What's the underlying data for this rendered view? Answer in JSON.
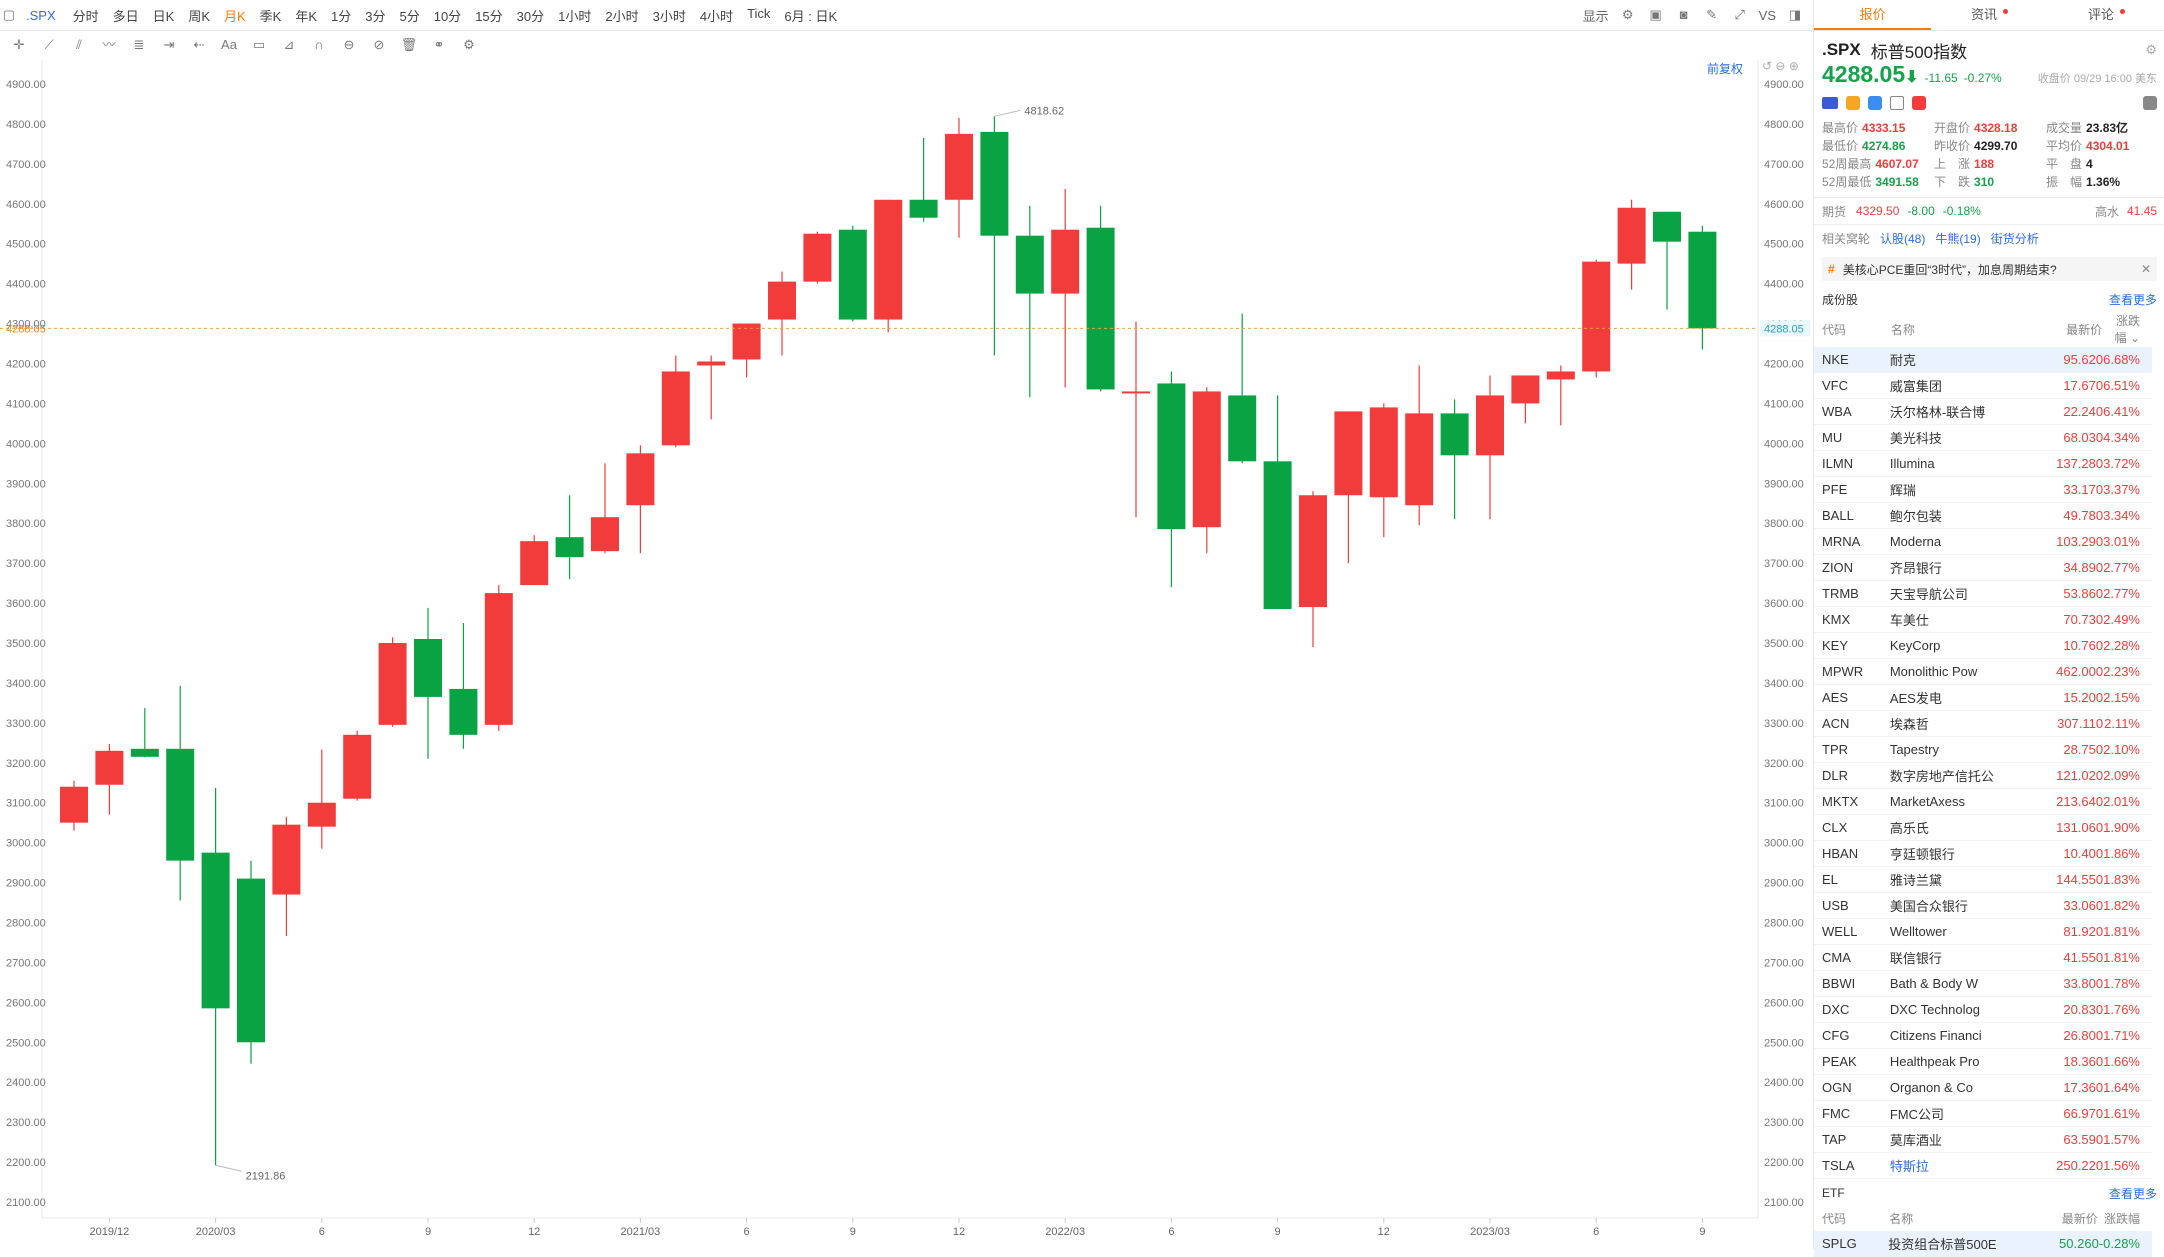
{
  "toolbar": {
    "symbol": ".SPX",
    "periods": [
      "分时",
      "多日",
      "日K",
      "周K",
      "月K",
      "季K",
      "年K",
      "1分",
      "3分",
      "5分",
      "10分",
      "15分",
      "30分",
      "1小时",
      "2小时",
      "3小时",
      "4小时",
      "Tick",
      "6月 : 日K"
    ],
    "active_period": "月K",
    "display_label": "显示",
    "vs_label": "VS"
  },
  "chart": {
    "adjust_label": "前复权",
    "current_price_tag": "4288.05",
    "high_label": "4818.62",
    "low_label": "2191.86",
    "y_ticks": [
      "4900.00",
      "4800.00",
      "4700.00",
      "4600.00",
      "4500.00",
      "4400.00",
      "4300.00",
      "4200.00",
      "4100.00",
      "4000.00",
      "3900.00",
      "3800.00",
      "3700.00",
      "3600.00",
      "3500.00",
      "3400.00",
      "3300.00",
      "3200.00",
      "3100.00",
      "3000.00",
      "2900.00",
      "2800.00",
      "2700.00",
      "2600.00",
      "2500.00",
      "2400.00",
      "2300.00",
      "2200.00",
      "2100.00"
    ],
    "x_ticks": [
      {
        "label": "2019/12",
        "i": 1
      },
      {
        "label": "2020/03",
        "i": 4
      },
      {
        "label": "6",
        "i": 7
      },
      {
        "label": "9",
        "i": 10
      },
      {
        "label": "12",
        "i": 13
      },
      {
        "label": "2021/03",
        "i": 16
      },
      {
        "label": "6",
        "i": 19
      },
      {
        "label": "9",
        "i": 22
      },
      {
        "label": "12",
        "i": 25
      },
      {
        "label": "2022/03",
        "i": 28
      },
      {
        "label": "6",
        "i": 31
      },
      {
        "label": "9",
        "i": 34
      },
      {
        "label": "12",
        "i": 37
      },
      {
        "label": "2023/03",
        "i": 40
      },
      {
        "label": "6",
        "i": 43
      },
      {
        "label": "9",
        "i": 46
      }
    ]
  },
  "chart_data": {
    "type": "candlestick",
    "ylim": [
      2060,
      4960
    ],
    "current_price": 4288.05,
    "candles": [
      {
        "o": 3050,
        "h": 3155,
        "l": 3030,
        "c": 3140
      },
      {
        "o": 3145,
        "h": 3247,
        "l": 3070,
        "c": 3230
      },
      {
        "o": 3235,
        "h": 3337,
        "l": 3214,
        "c": 3215
      },
      {
        "o": 3235,
        "h": 3393,
        "l": 2855,
        "c": 2955
      },
      {
        "o": 2975,
        "h": 3137,
        "l": 2192,
        "c": 2585
      },
      {
        "o": 2910,
        "h": 2955,
        "l": 2447,
        "c": 2500
      },
      {
        "o": 2870,
        "h": 3065,
        "l": 2766,
        "c": 3045
      },
      {
        "o": 3040,
        "h": 3233,
        "l": 2985,
        "c": 3100
      },
      {
        "o": 3110,
        "h": 3280,
        "l": 3105,
        "c": 3270
      },
      {
        "o": 3295,
        "h": 3514,
        "l": 3290,
        "c": 3500
      },
      {
        "o": 3510,
        "h": 3588,
        "l": 3210,
        "c": 3365
      },
      {
        "o": 3385,
        "h": 3550,
        "l": 3235,
        "c": 3270
      },
      {
        "o": 3295,
        "h": 3645,
        "l": 3280,
        "c": 3625
      },
      {
        "o": 3645,
        "h": 3770,
        "l": 3645,
        "c": 3755
      },
      {
        "o": 3765,
        "h": 3870,
        "l": 3660,
        "c": 3715
      },
      {
        "o": 3730,
        "h": 3950,
        "l": 3725,
        "c": 3815
      },
      {
        "o": 3845,
        "h": 3995,
        "l": 3725,
        "c": 3975
      },
      {
        "o": 3995,
        "h": 4220,
        "l": 3990,
        "c": 4180
      },
      {
        "o": 4195,
        "h": 4220,
        "l": 4060,
        "c": 4205
      },
      {
        "o": 4210,
        "h": 4300,
        "l": 4165,
        "c": 4300
      },
      {
        "o": 4310,
        "h": 4430,
        "l": 4220,
        "c": 4405
      },
      {
        "o": 4405,
        "h": 4530,
        "l": 4400,
        "c": 4525
      },
      {
        "o": 4535,
        "h": 4545,
        "l": 4305,
        "c": 4310
      },
      {
        "o": 4310,
        "h": 4610,
        "l": 4278,
        "c": 4610
      },
      {
        "o": 4610,
        "h": 4765,
        "l": 4555,
        "c": 4565
      },
      {
        "o": 4610,
        "h": 4815,
        "l": 4515,
        "c": 4775
      },
      {
        "o": 4780,
        "h": 4819,
        "l": 4220,
        "c": 4520
      },
      {
        "o": 4520,
        "h": 4595,
        "l": 4115,
        "c": 4375
      },
      {
        "o": 4375,
        "h": 4637,
        "l": 4140,
        "c": 4535
      },
      {
        "o": 4540,
        "h": 4595,
        "l": 4130,
        "c": 4135
      },
      {
        "o": 4130,
        "h": 4305,
        "l": 3815,
        "c": 4130
      },
      {
        "o": 4150,
        "h": 4180,
        "l": 3640,
        "c": 3785
      },
      {
        "o": 3790,
        "h": 4140,
        "l": 3725,
        "c": 4130
      },
      {
        "o": 4120,
        "h": 4325,
        "l": 3950,
        "c": 3955
      },
      {
        "o": 3955,
        "h": 4120,
        "l": 3590,
        "c": 3585
      },
      {
        "o": 3590,
        "h": 3880,
        "l": 3490,
        "c": 3870
      },
      {
        "o": 3870,
        "h": 4070,
        "l": 3700,
        "c": 4080
      },
      {
        "o": 3865,
        "h": 4100,
        "l": 3765,
        "c": 4090
      },
      {
        "o": 3845,
        "h": 4195,
        "l": 3795,
        "c": 4075
      },
      {
        "o": 4075,
        "h": 4110,
        "l": 3810,
        "c": 3970
      },
      {
        "o": 3970,
        "h": 4170,
        "l": 3810,
        "c": 4120
      },
      {
        "o": 4100,
        "h": 4170,
        "l": 4050,
        "c": 4170
      },
      {
        "o": 4160,
        "h": 4195,
        "l": 4045,
        "c": 4180
      },
      {
        "o": 4180,
        "h": 4460,
        "l": 4165,
        "c": 4455
      },
      {
        "o": 4450,
        "h": 4610,
        "l": 4385,
        "c": 4590
      },
      {
        "o": 4580,
        "h": 4565,
        "l": 4335,
        "c": 4505
      },
      {
        "o": 4530,
        "h": 4545,
        "l": 4235,
        "c": 4288
      }
    ],
    "colors": {
      "up": "#f23c3c",
      "down": "#0aa344"
    }
  },
  "panel": {
    "tabs": [
      "报价",
      "资讯",
      "评论"
    ],
    "symbol": ".SPX",
    "name": "标普500指数",
    "price": "4288.05",
    "change": "-11.65",
    "change_pct": "-0.27%",
    "close_time": "收盘价 09/29 16:00 美东",
    "quote_rows": [
      [
        {
          "l": "最高价",
          "v": "4333.15",
          "c": "red"
        },
        {
          "l": "开盘价",
          "v": "4328.18",
          "c": "red"
        },
        {
          "l": "成交量",
          "v": "23.83亿",
          "c": "dark"
        }
      ],
      [
        {
          "l": "最低价",
          "v": "4274.86",
          "c": "grn"
        },
        {
          "l": "昨收价",
          "v": "4299.70",
          "c": "dark"
        },
        {
          "l": "平均价",
          "v": "4304.01",
          "c": "red"
        }
      ],
      [
        {
          "l": "52周最高",
          "v": "4607.07",
          "c": "red"
        },
        {
          "l": "上　涨",
          "v": "188",
          "c": "red"
        },
        {
          "l": "平　盘",
          "v": "4",
          "c": "dark"
        }
      ],
      [
        {
          "l": "52周最低",
          "v": "3491.58",
          "c": "grn"
        },
        {
          "l": "下　跌",
          "v": "310",
          "c": "grn"
        },
        {
          "l": "振　幅",
          "v": "1.36%",
          "c": "dark"
        }
      ]
    ],
    "futures_label": "期货",
    "futures_price": "4329.50",
    "futures_change": "-8.00",
    "futures_pct": "-0.18%",
    "futures_extra_label": "高水",
    "futures_extra_value": "41.45",
    "related_label": "相关窝轮",
    "related_links": [
      "认股(48)",
      "牛熊(19)",
      "街货分析"
    ],
    "news_text": "美核心PCE重回“3时代”，加息周期结束?",
    "constituents_title": "成份股",
    "see_more": "查看更多",
    "col_headers": [
      "代码",
      "名称",
      "最新价",
      "涨跌幅"
    ],
    "constituents": [
      {
        "code": "NKE",
        "name": "耐克",
        "price": "95.620",
        "pct": "6.68%"
      },
      {
        "code": "VFC",
        "name": "威富集团",
        "price": "17.670",
        "pct": "6.51%"
      },
      {
        "code": "WBA",
        "name": "沃尔格林-联合博",
        "price": "22.240",
        "pct": "6.41%"
      },
      {
        "code": "MU",
        "name": "美光科技",
        "price": "68.030",
        "pct": "4.34%"
      },
      {
        "code": "ILMN",
        "name": "Illumina",
        "price": "137.280",
        "pct": "3.72%"
      },
      {
        "code": "PFE",
        "name": "辉瑞",
        "price": "33.170",
        "pct": "3.37%"
      },
      {
        "code": "BALL",
        "name": "鲍尔包装",
        "price": "49.780",
        "pct": "3.34%"
      },
      {
        "code": "MRNA",
        "name": "Moderna",
        "price": "103.290",
        "pct": "3.01%"
      },
      {
        "code": "ZION",
        "name": "齐昂银行",
        "price": "34.890",
        "pct": "2.77%"
      },
      {
        "code": "TRMB",
        "name": "天宝导航公司",
        "price": "53.860",
        "pct": "2.77%"
      },
      {
        "code": "KMX",
        "name": "车美仕",
        "price": "70.730",
        "pct": "2.49%"
      },
      {
        "code": "KEY",
        "name": "KeyCorp",
        "price": "10.760",
        "pct": "2.28%"
      },
      {
        "code": "MPWR",
        "name": "Monolithic Pow",
        "price": "462.000",
        "pct": "2.23%"
      },
      {
        "code": "AES",
        "name": "AES发电",
        "price": "15.200",
        "pct": "2.15%"
      },
      {
        "code": "ACN",
        "name": "埃森哲",
        "price": "307.110",
        "pct": "2.11%"
      },
      {
        "code": "TPR",
        "name": "Tapestry",
        "price": "28.750",
        "pct": "2.10%"
      },
      {
        "code": "DLR",
        "name": "数字房地产信托公",
        "price": "121.020",
        "pct": "2.09%"
      },
      {
        "code": "MKTX",
        "name": "MarketAxess",
        "price": "213.640",
        "pct": "2.01%"
      },
      {
        "code": "CLX",
        "name": "高乐氏",
        "price": "131.060",
        "pct": "1.90%"
      },
      {
        "code": "HBAN",
        "name": "亨廷顿银行",
        "price": "10.400",
        "pct": "1.86%"
      },
      {
        "code": "EL",
        "name": "雅诗兰黛",
        "price": "144.550",
        "pct": "1.83%"
      },
      {
        "code": "USB",
        "name": "美国合众银行",
        "price": "33.060",
        "pct": "1.82%"
      },
      {
        "code": "WELL",
        "name": "Welltower",
        "price": "81.920",
        "pct": "1.81%"
      },
      {
        "code": "CMA",
        "name": "联信银行",
        "price": "41.550",
        "pct": "1.81%"
      },
      {
        "code": "BBWI",
        "name": "Bath & Body W",
        "price": "33.800",
        "pct": "1.78%"
      },
      {
        "code": "DXC",
        "name": "DXC Technolog",
        "price": "20.830",
        "pct": "1.76%"
      },
      {
        "code": "CFG",
        "name": "Citizens Financi",
        "price": "26.800",
        "pct": "1.71%"
      },
      {
        "code": "PEAK",
        "name": "Healthpeak Pro",
        "price": "18.360",
        "pct": "1.66%"
      },
      {
        "code": "OGN",
        "name": "Organon & Co",
        "price": "17.360",
        "pct": "1.64%"
      },
      {
        "code": "FMC",
        "name": "FMC公司",
        "price": "66.970",
        "pct": "1.61%"
      },
      {
        "code": "TAP",
        "name": "莫库酒业",
        "price": "63.590",
        "pct": "1.57%"
      },
      {
        "code": "TSLA",
        "name": "特斯拉",
        "price": "250.220",
        "pct": "1.56%"
      }
    ],
    "etf_title": "ETF",
    "etf_see_more": "查看更多",
    "etf_row": {
      "code": "SPLG",
      "name": "投资组合标普500E",
      "price": "50.260",
      "pct": "-0.28%"
    }
  }
}
